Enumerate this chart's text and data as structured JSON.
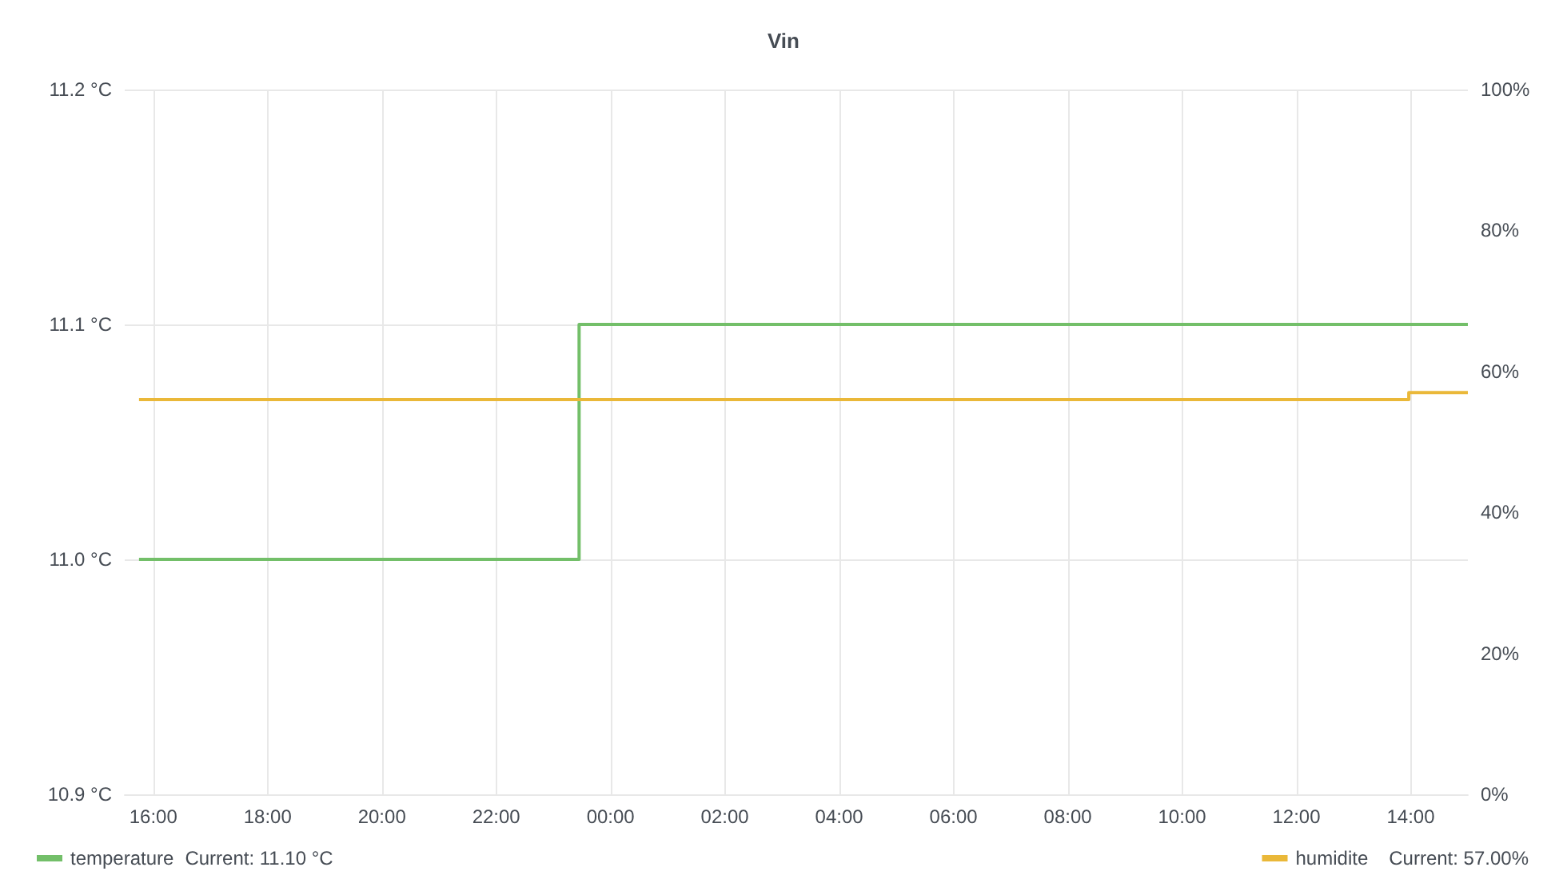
{
  "chart_data": {
    "type": "step",
    "title": "Vin",
    "xlim": [
      "--01-01T15:30",
      "--01-02T15:00"
    ],
    "xticks": [
      {
        "value": "--01-01T16:00",
        "label": "16:00"
      },
      {
        "value": "--01-01T18:00",
        "label": "18:00"
      },
      {
        "value": "--01-01T20:00",
        "label": "20:00"
      },
      {
        "value": "--01-01T22:00",
        "label": "22:00"
      },
      {
        "value": "--01-02T00:00",
        "label": "00:00"
      },
      {
        "value": "--01-02T02:00",
        "label": "02:00"
      },
      {
        "value": "--01-02T04:00",
        "label": "04:00"
      },
      {
        "value": "--01-02T06:00",
        "label": "06:00"
      },
      {
        "value": "--01-02T08:00",
        "label": "08:00"
      },
      {
        "value": "--01-02T10:00",
        "label": "10:00"
      },
      {
        "value": "--01-02T12:00",
        "label": "12:00"
      },
      {
        "value": "--01-02T14:00",
        "label": "14:00"
      }
    ],
    "ylim": [
      10.9,
      11.2
    ],
    "yticks": [
      {
        "value": 10.9,
        "label": "10.9 °C"
      },
      {
        "value": 11.0,
        "label": "11.0 °C"
      },
      {
        "value": 11.1,
        "label": "11.1 °C"
      },
      {
        "value": 11.2,
        "label": "11.2 °C"
      }
    ],
    "y2lim": [
      0,
      100
    ],
    "y2ticks": [
      {
        "value": 0,
        "label": "0%"
      },
      {
        "value": 20,
        "label": "20%"
      },
      {
        "value": 40,
        "label": "40%"
      },
      {
        "value": 60,
        "label": "60%"
      },
      {
        "value": 80,
        "label": "80%"
      },
      {
        "value": 100,
        "label": "100%"
      }
    ],
    "series": [
      {
        "name": "temperature",
        "color": "#73bf69",
        "x": [
          "--01-01T15:45",
          "--01-01T23:27",
          "--01-02T15:00"
        ],
        "values": [
          11.0,
          11.1,
          11.1
        ]
      },
      {
        "name": "humidite",
        "color": "#eab839",
        "axis": "y2",
        "x": [
          "--01-01T15:45",
          "--01-02T13:58",
          "--01-02T15:00"
        ],
        "values": [
          56,
          57,
          57
        ]
      }
    ],
    "annotations": [
      "Current: 11.10 °C",
      "Current: 57.00%"
    ],
    "grid": true,
    "legend": "bottom",
    "marker": "none",
    "line_style": "solid"
  }
}
